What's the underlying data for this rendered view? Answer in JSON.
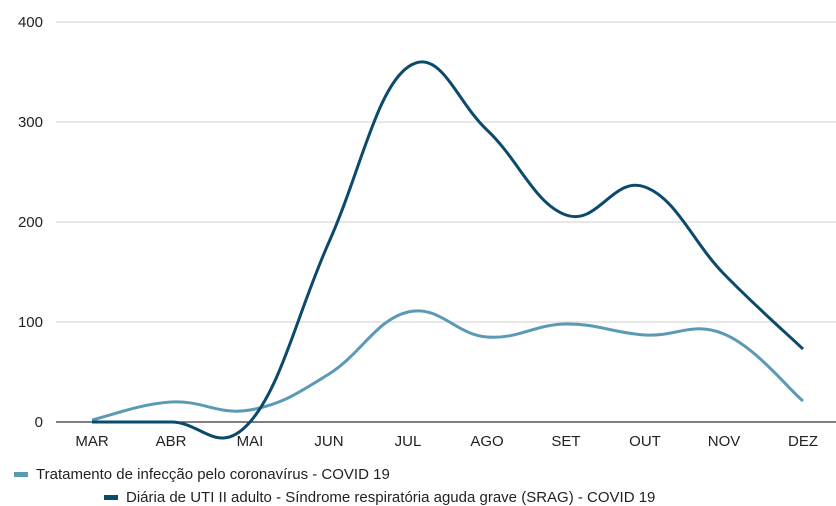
{
  "chart_data": {
    "type": "line",
    "categories": [
      "MAR",
      "ABR",
      "MAI",
      "JUN",
      "JUL",
      "AGO",
      "SET",
      "OUT",
      "NOV",
      "DEZ"
    ],
    "ylim": [
      0,
      400
    ],
    "yticks": [
      "0",
      "100",
      "200",
      "300",
      "400"
    ],
    "grid": true,
    "legend_position": "bottom",
    "series": [
      {
        "name": "Tratamento de infecção pelo coronavírus - COVID 19",
        "color": "#5b9ab5",
        "values": [
          2,
          20,
          12,
          48,
          110,
          85,
          98,
          87,
          88,
          21
        ]
      },
      {
        "name": "Diária de UTI II adulto - Síndrome respiratória aguda grave (SRAG) - COVID 19",
        "color": "#0b4a6b",
        "values": [
          0,
          0,
          0,
          180,
          355,
          292,
          207,
          235,
          148,
          73
        ]
      }
    ]
  }
}
